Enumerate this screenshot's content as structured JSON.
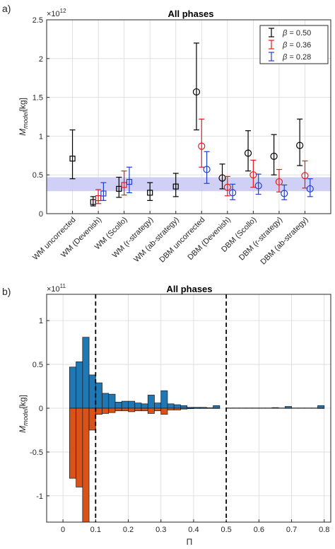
{
  "chart_data": [
    {
      "type": "scatter",
      "panel_label": "a)",
      "title": "All phases",
      "ylabel_main": "M",
      "ylabel_sub": "model",
      "ylabel_unit": "[kg]",
      "exponent_text": "×10",
      "exponent_power": "12",
      "ylim": [
        0,
        2.5
      ],
      "yticks": [
        0,
        0.5,
        1,
        1.5,
        2,
        2.5
      ],
      "ytick_labels": [
        "0",
        "0.5",
        "1",
        "1.5",
        "2",
        "2.5"
      ],
      "grid": true,
      "legend_position": "top-right",
      "band": {
        "low": 0.29,
        "high": 0.47,
        "color": "#c8c8f5"
      },
      "categories": [
        "WM uncorrected",
        "WM (Devenish)",
        "WM (Scollo)",
        "WM (r-strategy)",
        "WM (ab-strategy)",
        "DBM uncorrected",
        "DBM (Devenish)",
        "DBM (Scollo)",
        "DBM (r-strategy)",
        "DBM (ab-strategy)"
      ],
      "series": [
        {
          "name": "β = 0.50",
          "legend_symbol": "β",
          "legend_value": "= 0.50",
          "color": "#000000",
          "offsets": [
            0,
            -0.2,
            -0.2,
            0,
            0,
            -0.2,
            -0.2,
            -0.2,
            -0.2,
            -0.2
          ],
          "markers": [
            "square",
            "square",
            "square",
            "square",
            "square",
            "circle",
            "circle",
            "circle",
            "circle",
            "circle"
          ],
          "values": [
            0.71,
            0.15,
            0.32,
            0.27,
            0.35,
            1.57,
            0.46,
            0.78,
            0.74,
            0.88
          ],
          "lower": [
            0.45,
            0.1,
            0.21,
            0.17,
            0.22,
            1.08,
            0.32,
            0.55,
            0.5,
            0.62
          ],
          "upper": [
            1.08,
            0.22,
            0.47,
            0.4,
            0.52,
            2.2,
            0.64,
            1.07,
            1.02,
            1.22
          ]
        },
        {
          "name": "β = 0.36",
          "legend_symbol": "β",
          "legend_value": "= 0.36",
          "color": "#e31a1c",
          "offsets": [
            null,
            0,
            0,
            null,
            null,
            0,
            0,
            0,
            0,
            0
          ],
          "markers": [
            "square",
            "square",
            "square",
            "square",
            "square",
            "circle",
            "circle",
            "circle",
            "circle",
            "circle"
          ],
          "values": [
            null,
            0.2,
            0.37,
            null,
            null,
            0.87,
            0.34,
            0.5,
            0.41,
            0.49
          ],
          "lower": [
            null,
            0.13,
            0.24,
            null,
            null,
            0.6,
            0.23,
            0.34,
            0.28,
            0.33
          ],
          "upper": [
            null,
            0.31,
            0.55,
            null,
            null,
            1.22,
            0.48,
            0.69,
            0.57,
            0.68
          ]
        },
        {
          "name": "β = 0.28",
          "legend_symbol": "β",
          "legend_value": "= 0.28",
          "color": "#1f3fd1",
          "offsets": [
            null,
            0.2,
            0.2,
            null,
            null,
            0.2,
            0.2,
            0.2,
            0.2,
            0.2
          ],
          "markers": [
            "square",
            "square",
            "square",
            "square",
            "square",
            "circle",
            "circle",
            "circle",
            "circle",
            "circle"
          ],
          "values": [
            null,
            0.26,
            0.41,
            null,
            null,
            0.57,
            0.27,
            0.36,
            0.26,
            0.32
          ],
          "lower": [
            null,
            0.17,
            0.27,
            null,
            null,
            0.39,
            0.18,
            0.25,
            0.18,
            0.22
          ],
          "upper": [
            null,
            0.4,
            0.6,
            null,
            null,
            0.8,
            0.38,
            0.51,
            0.37,
            0.45
          ]
        }
      ]
    },
    {
      "type": "bar",
      "panel_label": "b)",
      "title": "All phases",
      "ylabel_main": "M",
      "ylabel_sub": "model",
      "ylabel_unit": "[kg]",
      "xlabel": "Π",
      "exponent_text": "×10",
      "exponent_power": "11",
      "xlim": [
        -0.05,
        0.82
      ],
      "ylim": [
        -1.3,
        1.3
      ],
      "xticks": [
        0,
        0.1,
        0.2,
        0.3,
        0.4,
        0.5,
        0.6,
        0.7,
        0.8
      ],
      "xtick_labels": [
        "0",
        "0.1",
        "0.2",
        "0.3",
        "0.4",
        "0.5",
        "0.6",
        "0.7",
        "0.8"
      ],
      "yticks": [
        -1,
        -0.5,
        0,
        0.5,
        1
      ],
      "ytick_labels": [
        "-1",
        "-0.5",
        "0",
        "0.5",
        "1"
      ],
      "grid": true,
      "vlines": [
        0.1,
        0.5
      ],
      "bar_width": 0.02,
      "bin_centers": [
        0.03,
        0.05,
        0.07,
        0.09,
        0.11,
        0.13,
        0.15,
        0.17,
        0.19,
        0.21,
        0.23,
        0.25,
        0.27,
        0.29,
        0.31,
        0.33,
        0.35,
        0.37,
        0.39,
        0.41,
        0.43,
        0.45,
        0.47,
        0.49,
        0.51,
        0.53,
        0.55,
        0.57,
        0.59,
        0.61,
        0.63,
        0.65,
        0.67,
        0.69,
        0.71,
        0.73,
        0.75,
        0.77,
        0.79
      ],
      "series": [
        {
          "color": "#1f77b4",
          "values": [
            0.47,
            0.53,
            0.81,
            0.38,
            0.29,
            0.17,
            0.16,
            0.07,
            0.08,
            0.08,
            0.06,
            0.05,
            0.15,
            0.06,
            0.2,
            0.05,
            0.04,
            0.03,
            0.01,
            0.01,
            0.01,
            0.005,
            0.03,
            0,
            0.003,
            0.003,
            0.003,
            0.003,
            0.003,
            0.003,
            0.003,
            0.007,
            0.003,
            0.02,
            0.003,
            0.003,
            0.003,
            0.003,
            0.03
          ]
        },
        {
          "color": "#d95319",
          "values": [
            -0.8,
            -0.9,
            -1.3,
            -0.25,
            -0.07,
            -0.06,
            -0.05,
            -0.03,
            -0.03,
            -0.04,
            -0.03,
            -0.03,
            -0.06,
            -0.03,
            -0.07,
            -0.02,
            -0.02,
            -0.01,
            -0.005,
            -0.003,
            -0.003,
            -0.002,
            -0.003,
            0,
            -0.001,
            -0.001,
            -0.001,
            -0.001,
            -0.001,
            -0.001,
            -0.001,
            -0.001,
            -0.001,
            -0.002,
            -0.001,
            -0.001,
            -0.001,
            -0.001,
            -0.003
          ]
        }
      ]
    }
  ]
}
